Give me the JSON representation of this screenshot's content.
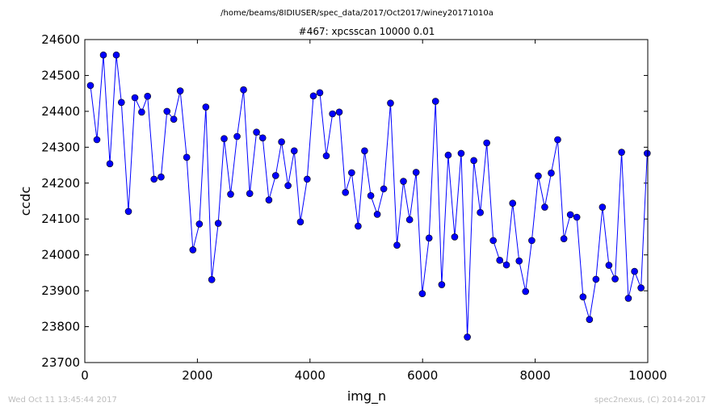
{
  "header": {
    "suptitle": "/home/beams/8IDIUSER/spec_data/2017/Oct2017/winey20171010a"
  },
  "footer": {
    "timestamp": "Wed Oct 11 13:45:44 2017",
    "credit": "spec2nexus, (C) 2014-2017"
  },
  "colors": {
    "series_line": "#0000ff",
    "marker_fill": "#0000ff",
    "marker_edge": "#000000"
  },
  "chart_data": {
    "type": "line",
    "title": "#467: xpcsscan 10000 0.01",
    "xlabel": "img_n",
    "ylabel": "ccdc",
    "xlim": [
      0,
      10000
    ],
    "ylim": [
      23700,
      24600
    ],
    "xticks": [
      "0",
      "2000",
      "4000",
      "6000",
      "8000",
      "10000"
    ],
    "yticks": [
      "23700",
      "23800",
      "23900",
      "24000",
      "24100",
      "24200",
      "24300",
      "24400",
      "24500",
      "24600"
    ],
    "marker": "circle",
    "grid": false,
    "series": [
      {
        "x": [
          100,
          215,
          330,
          445,
          560,
          650,
          775,
          890,
          1010,
          1115,
          1230,
          1355,
          1460,
          1580,
          1695,
          1810,
          1920,
          2035,
          2150,
          2255,
          2370,
          2475,
          2590,
          2705,
          2820,
          2930,
          3050,
          3160,
          3270,
          3390,
          3495,
          3610,
          3720,
          3830,
          3950,
          4060,
          4175,
          4290,
          4400,
          4520,
          4630,
          4740,
          4855,
          4970,
          5080,
          5195,
          5310,
          5430,
          5545,
          5660,
          5770,
          5885,
          5995,
          6115,
          6230,
          6340,
          6455,
          6570,
          6685,
          6795,
          6910,
          7025,
          7140,
          7255,
          7370,
          7490,
          7600,
          7715,
          7830,
          7940,
          8055,
          8170,
          8285,
          8400,
          8510,
          8625,
          8740,
          8850,
          8965,
          9080,
          9195,
          9310,
          9420,
          9535,
          9655,
          9765,
          9880,
          9990
        ],
        "y": [
          24472,
          24321,
          24557,
          24254,
          24557,
          24425,
          24121,
          24438,
          24398,
          24442,
          24211,
          24217,
          24400,
          24378,
          24457,
          24272,
          24014,
          24086,
          24412,
          23931,
          24088,
          24324,
          24169,
          24330,
          24460,
          24171,
          24342,
          24326,
          24153,
          24221,
          24315,
          24193,
          24290,
          24092,
          24211,
          24443,
          24452,
          24276,
          24393,
          24398,
          24174,
          24229,
          24080,
          24290,
          24165,
          24113,
          24184,
          24423,
          24027,
          24205,
          24098,
          24230,
          23892,
          24047,
          24428,
          23917,
          24278,
          24050,
          24283,
          23771,
          24263,
          24118,
          24312,
          24040,
          23985,
          23972,
          24144,
          23983,
          23898,
          24040,
          24220,
          24133,
          24228,
          24321,
          24045,
          24112,
          24105,
          23883,
          23820,
          23932,
          24133,
          23971,
          23933,
          24286,
          23879,
          23954,
          23908,
          24283
        ]
      }
    ]
  }
}
